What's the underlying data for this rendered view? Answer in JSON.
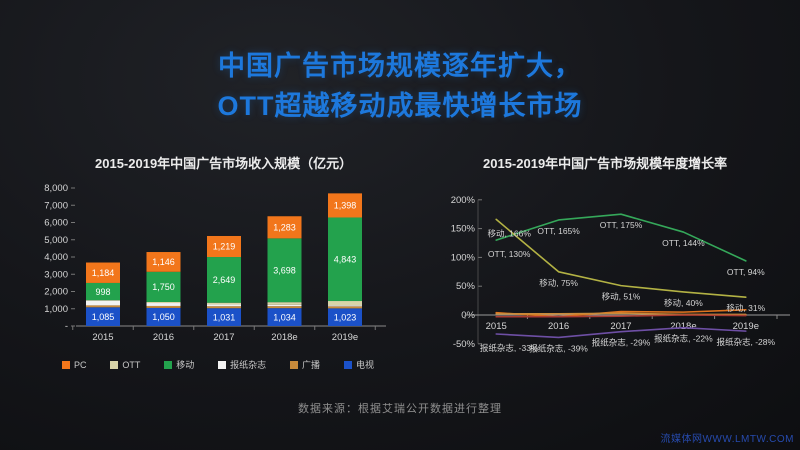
{
  "slide": {
    "title_line1": "中国广告市场规模逐年扩大，",
    "title_line2": "OTT超越移动成最快增长市场",
    "accent_color": "#1d78dc",
    "source_note": "数据来源：根据艾瑞公开数据进行整理",
    "watermark": "流媒体网WWW.LMTW.COM"
  },
  "chart_data": [
    {
      "id": "revenue",
      "type": "bar",
      "stacked": true,
      "title": "2015-2019年中国广告市场收入规模（亿元）",
      "categories": [
        "2015",
        "2016",
        "2017",
        "2018e",
        "2019e"
      ],
      "ylabel": "",
      "ylim": [
        0,
        8000
      ],
      "ytick_step": 1000,
      "grid": false,
      "legend_position": "bottom",
      "series": [
        {
          "name": "电视",
          "color": "#1B51C8",
          "values": [
            1085,
            1050,
            1031,
            1034,
            1023
          ],
          "show_labels": true
        },
        {
          "name": "广播",
          "color": "#C78A3B",
          "values": [
            110,
            112,
            115,
            116,
            117
          ],
          "show_labels": false
        },
        {
          "name": "报纸杂志",
          "color": "#F2F2F2",
          "values": [
            280,
            170,
            104,
            81,
            58
          ],
          "show_labels": false
        },
        {
          "name": "OTT",
          "color": "#D8D4A8",
          "values": [
            23,
            60,
            100,
            150,
            250
          ],
          "show_labels": false
        },
        {
          "name": "移动",
          "color": "#23A24D",
          "values": [
            998,
            1750,
            2649,
            3698,
            4843
          ],
          "show_labels": true
        },
        {
          "name": "PC",
          "color": "#F2761B",
          "values": [
            1184,
            1146,
            1219,
            1283,
            1398
          ],
          "show_labels": true
        }
      ],
      "legend_order": [
        "PC",
        "OTT",
        "移动",
        "报纸杂志",
        "广播",
        "电视"
      ]
    },
    {
      "id": "growth",
      "type": "line",
      "title": "2015-2019年中国广告市场规模年度增长率",
      "categories": [
        "2015",
        "2016",
        "2017",
        "2018e",
        "2019e"
      ],
      "ylim": [
        -50,
        200
      ],
      "ytick_step": 50,
      "grid": false,
      "legend_position": "none",
      "series": [
        {
          "name": "OTT",
          "color": "#35A85A",
          "values": [
            130,
            165,
            175,
            144,
            94
          ],
          "labeled": true
        },
        {
          "name": "移动",
          "color": "#B3B244",
          "values": [
            166,
            75,
            51,
            40,
            31
          ],
          "labeled": true
        },
        {
          "name": "报纸杂志",
          "color": "#6E4FA5",
          "values": [
            -33,
            -39,
            -29,
            -22,
            -28
          ],
          "labeled": true
        },
        {
          "name": "PC",
          "color": "#E0731D",
          "values": [
            4,
            -3,
            6,
            5,
            9
          ],
          "labeled": false
        },
        {
          "name": "广播",
          "color": "#C98B3A",
          "values": [
            2,
            2,
            3,
            1,
            1
          ],
          "labeled": false
        },
        {
          "name": "电视",
          "color": "#A93B32",
          "values": [
            -3,
            -3,
            -2,
            0,
            -1
          ],
          "labeled": false
        }
      ]
    }
  ]
}
